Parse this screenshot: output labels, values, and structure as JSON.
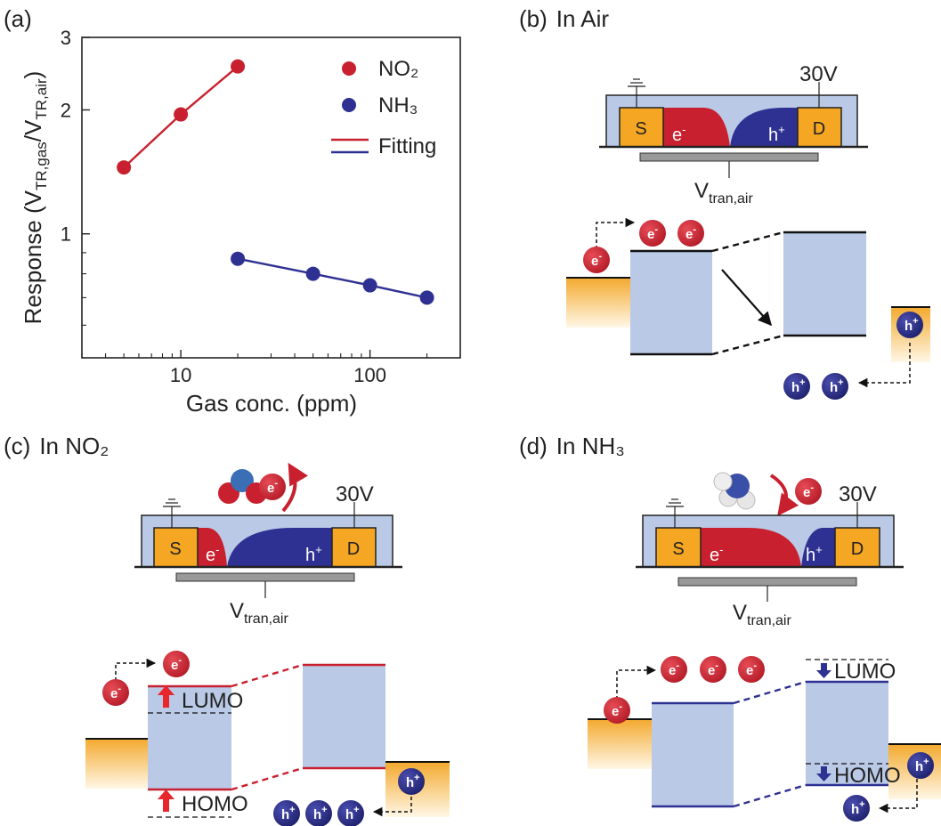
{
  "panels": {
    "a": {
      "label": "(a)"
    },
    "b": {
      "label": "(b)",
      "title": "In Air"
    },
    "c": {
      "label": "(c)",
      "title": "In NO₂"
    },
    "d": {
      "label": "(d)",
      "title": "In NH₃"
    }
  },
  "device": {
    "source": "S",
    "drain": "D",
    "voltage": "30V",
    "vtran_main": "V",
    "vtran_sub": "tran,air",
    "electron": "e",
    "electron_sup": "-",
    "hole": "h",
    "hole_sup": "+"
  },
  "bands": {
    "lumo": "LUMO",
    "homo": "HOMO"
  },
  "colors": {
    "no2": "#c8202e",
    "nh3": "#2e3192",
    "band_fill": "#b9c9e6",
    "contact": "#f5a623",
    "gate": "#999999"
  },
  "chart_data": {
    "type": "scatter",
    "xscale": "log",
    "yscale": "log",
    "xlim": [
      3,
      300
    ],
    "ylim": [
      0.5,
      3
    ],
    "xticks": [
      "10",
      "100"
    ],
    "yticks": [
      "1",
      "2",
      "3"
    ],
    "xlabel": "Gas conc. (ppm)",
    "ylabel_main": "Response (V",
    "ylabel_sub1": "TR,gas",
    "ylabel_mid": "/V",
    "ylabel_sub2": "TR,air",
    "ylabel_end": ")",
    "legend": [
      "NO₂",
      "NH₃",
      "Fitting"
    ],
    "legend_placement": "top-right",
    "series": [
      {
        "name": "NO₂",
        "color": "#c8202e",
        "x": [
          5,
          10,
          20
        ],
        "y": [
          1.45,
          1.95,
          2.55
        ]
      },
      {
        "name": "NH₃",
        "color": "#2e3192",
        "x": [
          20,
          50,
          100,
          200
        ],
        "y": [
          0.87,
          0.8,
          0.75,
          0.7
        ]
      }
    ]
  }
}
